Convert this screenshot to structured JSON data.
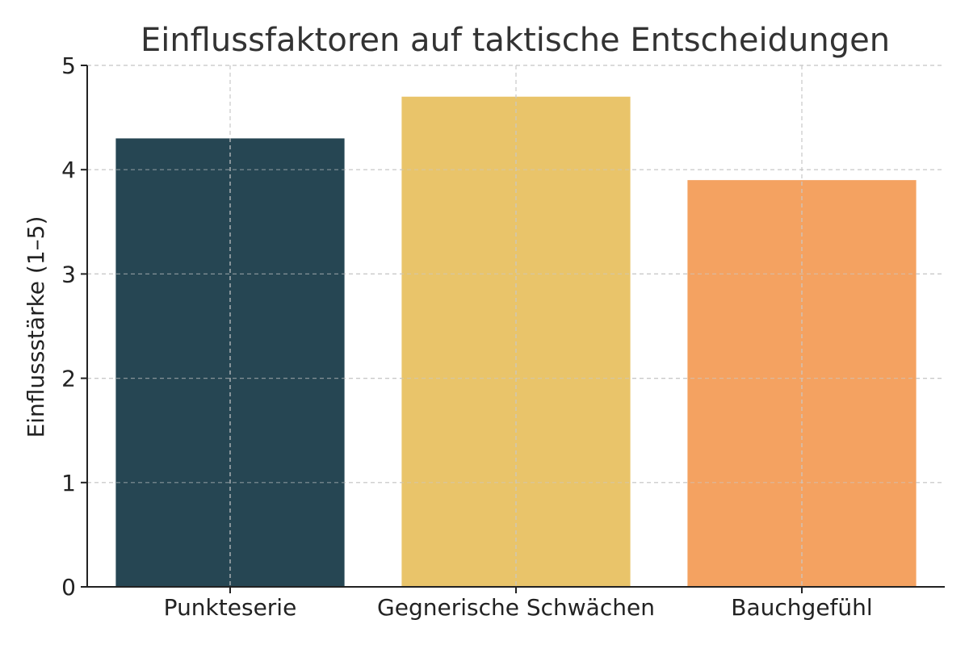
{
  "chart_data": {
    "type": "bar",
    "title": "Einflussfaktoren auf taktische Entscheidungen",
    "xlabel": "",
    "ylabel": "Einflussstärke (1–5)",
    "categories": [
      "Punkteserie",
      "Gegnerische Schwächen",
      "Bauchgefühl"
    ],
    "values": [
      4.3,
      4.7,
      3.9
    ],
    "colors": [
      "#264653",
      "#e9c46a",
      "#f4a261"
    ],
    "ylim": [
      0,
      5
    ],
    "yticks": [
      0,
      1,
      2,
      3,
      4,
      5
    ],
    "grid": true,
    "legend": "none"
  }
}
